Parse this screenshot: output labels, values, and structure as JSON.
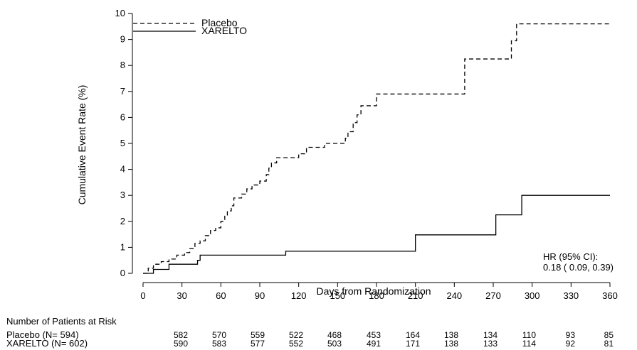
{
  "chart_data": {
    "type": "line",
    "title": "",
    "xlabel": "Days from Randomization",
    "ylabel": "Cumulative Event Rate (%)",
    "xlim": [
      0,
      360
    ],
    "ylim": [
      0,
      10
    ],
    "xticks": [
      0,
      30,
      60,
      90,
      120,
      150,
      180,
      210,
      240,
      270,
      300,
      330,
      360
    ],
    "yticks": [
      0,
      1,
      2,
      3,
      4,
      5,
      6,
      7,
      8,
      9,
      10
    ],
    "legend_position": "top-left",
    "series": [
      {
        "name": "Placebo",
        "style": "dashed",
        "color": "#000000",
        "steps": [
          [
            0,
            0
          ],
          [
            4,
            0.2
          ],
          [
            8,
            0.35
          ],
          [
            14,
            0.45
          ],
          [
            20,
            0.55
          ],
          [
            26,
            0.7
          ],
          [
            32,
            0.8
          ],
          [
            36,
            0.95
          ],
          [
            40,
            1.15
          ],
          [
            44,
            1.25
          ],
          [
            48,
            1.45
          ],
          [
            52,
            1.65
          ],
          [
            56,
            1.75
          ],
          [
            60,
            2.0
          ],
          [
            63,
            2.2
          ],
          [
            65,
            2.4
          ],
          [
            68,
            2.6
          ],
          [
            70,
            2.9
          ],
          [
            76,
            3.05
          ],
          [
            80,
            3.25
          ],
          [
            84,
            3.4
          ],
          [
            90,
            3.55
          ],
          [
            95,
            3.8
          ],
          [
            97,
            4.05
          ],
          [
            99,
            4.25
          ],
          [
            103,
            4.45
          ],
          [
            120,
            4.6
          ],
          [
            126,
            4.85
          ],
          [
            140,
            5.0
          ],
          [
            156,
            5.2
          ],
          [
            158,
            5.45
          ],
          [
            162,
            5.8
          ],
          [
            165,
            6.1
          ],
          [
            168,
            6.45
          ],
          [
            180,
            6.9
          ],
          [
            248,
            8.25
          ],
          [
            284,
            8.95
          ],
          [
            288,
            9.6
          ],
          [
            360,
            9.6
          ]
        ]
      },
      {
        "name": "XARELTO",
        "style": "solid",
        "color": "#000000",
        "steps": [
          [
            0,
            0
          ],
          [
            8,
            0.15
          ],
          [
            20,
            0.35
          ],
          [
            42,
            0.5
          ],
          [
            44,
            0.7
          ],
          [
            110,
            0.85
          ],
          [
            210,
            1.48
          ],
          [
            272,
            2.25
          ],
          [
            292,
            3.0
          ],
          [
            360,
            3.0
          ]
        ]
      }
    ],
    "annotations": {
      "hr_line1": "HR (95% CI):",
      "hr_line2": "0.18 ( 0.09,  0.39)"
    },
    "risk_table": {
      "title": "Number of Patients at Risk",
      "rows": [
        {
          "label": "Placebo (N= 594)",
          "values": [
            "582",
            "570",
            "559",
            "522",
            "468",
            "453",
            "164",
            "138",
            "134",
            "110",
            "93",
            "85"
          ]
        },
        {
          "label": "XARELTO (N= 602)",
          "values": [
            "590",
            "583",
            "577",
            "552",
            "503",
            "491",
            "171",
            "138",
            "133",
            "114",
            "92",
            "81"
          ]
        }
      ]
    }
  }
}
